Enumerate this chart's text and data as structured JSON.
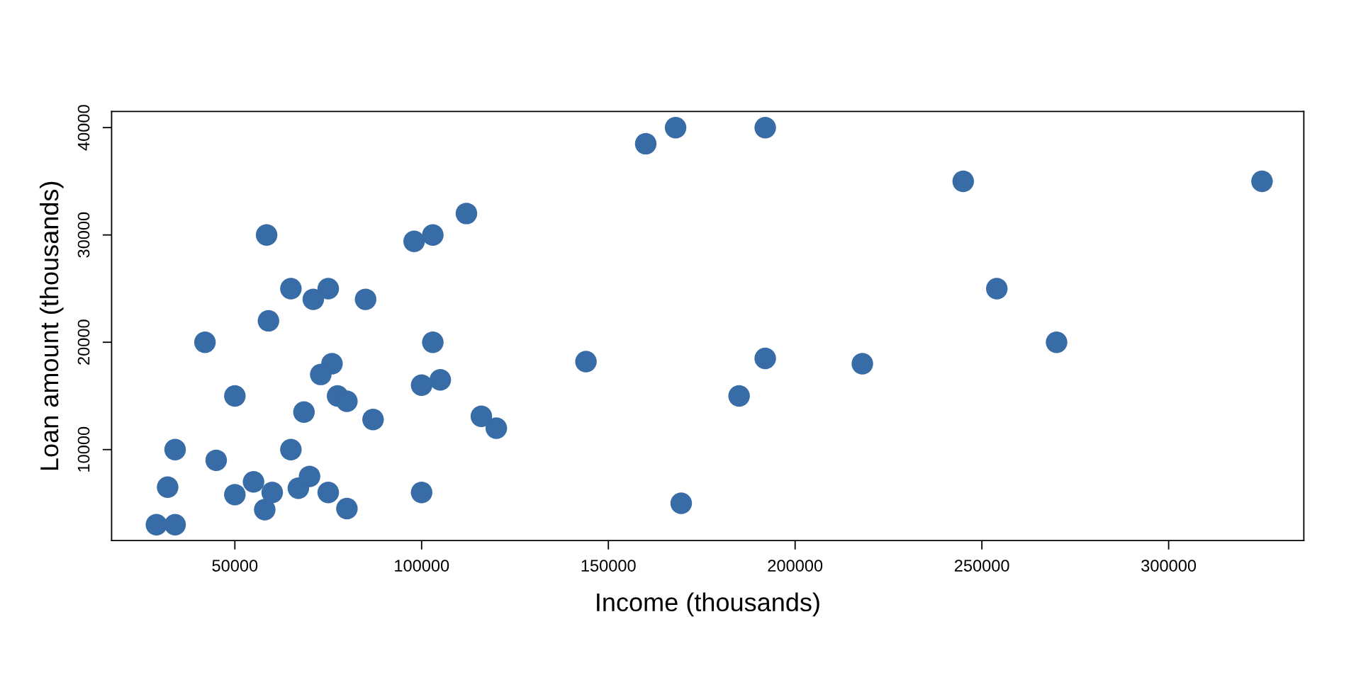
{
  "chart_data": {
    "type": "scatter",
    "xlabel": "Income (thousands)",
    "ylabel": "Loan amount (thousands)",
    "x": [
      58500,
      65000,
      71000,
      75000,
      85000,
      59000,
      42000,
      76000,
      73000,
      50000,
      77500,
      80000,
      68500,
      87000,
      103000,
      105000,
      100000,
      116000,
      120000,
      98000,
      103000,
      112000,
      34000,
      45000,
      32000,
      29000,
      34000,
      50000,
      55000,
      60000,
      58000,
      65000,
      67000,
      70000,
      75000,
      80000,
      100000,
      160000,
      168000,
      192000,
      245000,
      144000,
      192000,
      185000,
      218000,
      169500,
      254000,
      270000,
      325000
    ],
    "series": [
      {
        "color": "#386ca6",
        "values": [
          30000,
          25000,
          24000,
          25000,
          24000,
          22000,
          20000,
          18000,
          17000,
          15000,
          15000,
          14500,
          13500,
          12800,
          20000,
          16500,
          16000,
          13100,
          12000,
          29400,
          30000,
          32000,
          10000,
          9000,
          6500,
          3000,
          3000,
          5800,
          7000,
          6000,
          4400,
          10000,
          6400,
          7500,
          6000,
          4500,
          6000,
          38500,
          40000,
          40000,
          35000,
          18200,
          18500,
          15000,
          18000,
          5000,
          25000,
          20000,
          35000
        ]
      }
    ],
    "xlim": [
      17000,
      336200
    ],
    "ylim": [
      1520,
      41500
    ],
    "xticks": [
      50000,
      100000,
      150000,
      200000,
      250000,
      300000
    ],
    "yticks": [
      10000,
      20000,
      30000,
      40000
    ],
    "marker": "circle",
    "grid": false,
    "legend": false
  }
}
